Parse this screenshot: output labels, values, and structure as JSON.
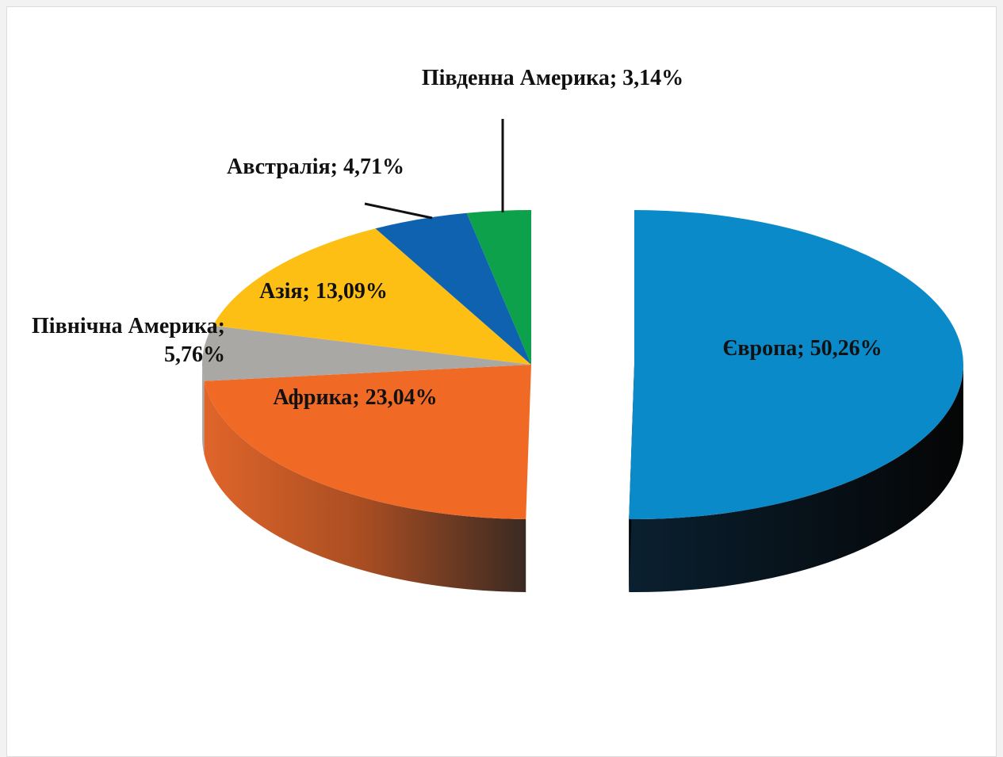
{
  "chart_data": {
    "type": "pie3d",
    "categories": [
      "Європа",
      "Африка",
      "Північна Америка",
      "Азія",
      "Австралія",
      "Південна Америка"
    ],
    "values": [
      50.26,
      23.04,
      5.76,
      13.09,
      4.71,
      3.14
    ],
    "value_labels": [
      "50,26%",
      "23,04%",
      "5,76%",
      "13,09%",
      "4,71%",
      "3,14%"
    ],
    "colors": [
      "#0a8ac8",
      "#f06a25",
      "#aaa8a5",
      "#fdbf13",
      "#0e62b0",
      "#0ca14a"
    ]
  }
}
